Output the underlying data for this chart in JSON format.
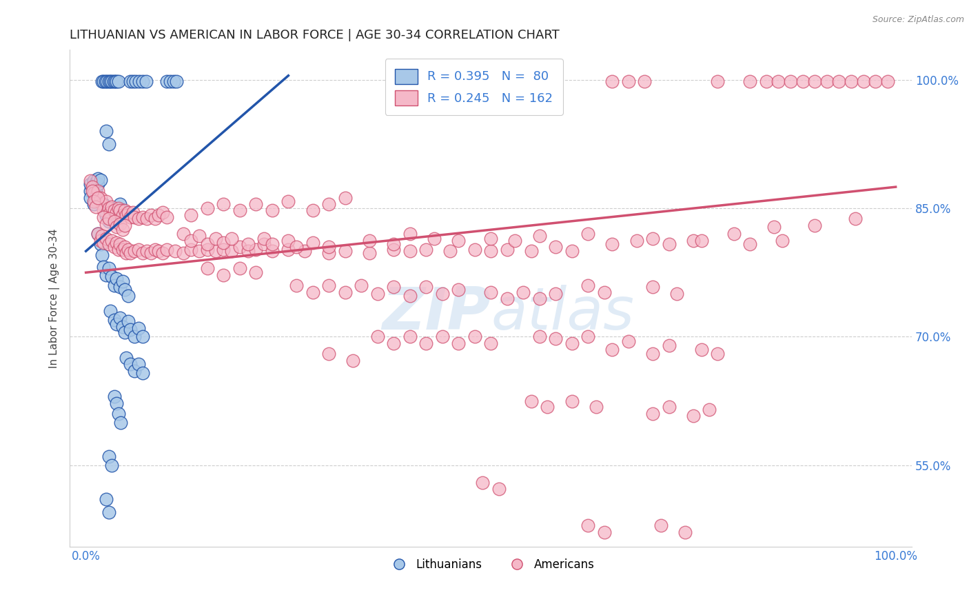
{
  "title": "LITHUANIAN VS AMERICAN IN LABOR FORCE | AGE 30-34 CORRELATION CHART",
  "source_text": "Source: ZipAtlas.com",
  "ylabel": "In Labor Force | Age 30-34",
  "x_lim": [
    -0.02,
    1.02
  ],
  "y_lim": [
    0.455,
    1.035
  ],
  "y_ticks": [
    0.55,
    0.7,
    0.85,
    1.0
  ],
  "x_ticks": [
    0.0,
    1.0
  ],
  "title_fontsize": 13,
  "axis_label_fontsize": 11,
  "tick_label_color": "#3a7bd5",
  "background_color": "#ffffff",
  "grid_color": "#c8c8c8",
  "blue_color_face": "#a8c8e8",
  "blue_color_edge": "#2255aa",
  "pink_color_face": "#f5b8c8",
  "pink_color_edge": "#d05070",
  "blue_line_color": "#2255aa",
  "pink_line_color": "#d05070",
  "blue_scatter": [
    [
      0.005,
      0.87
    ],
    [
      0.005,
      0.878
    ],
    [
      0.005,
      0.862
    ],
    [
      0.01,
      0.875
    ],
    [
      0.01,
      0.882
    ],
    [
      0.01,
      0.868
    ],
    [
      0.01,
      0.855
    ],
    [
      0.012,
      0.872
    ],
    [
      0.012,
      0.88
    ],
    [
      0.012,
      0.865
    ],
    [
      0.015,
      0.878
    ],
    [
      0.015,
      0.885
    ],
    [
      0.018,
      0.883
    ],
    [
      0.02,
      0.998
    ],
    [
      0.022,
      0.998
    ],
    [
      0.024,
      0.998
    ],
    [
      0.026,
      0.998
    ],
    [
      0.028,
      0.998
    ],
    [
      0.03,
      0.998
    ],
    [
      0.032,
      0.998
    ],
    [
      0.034,
      0.998
    ],
    [
      0.036,
      0.998
    ],
    [
      0.038,
      0.998
    ],
    [
      0.04,
      0.998
    ],
    [
      0.055,
      0.998
    ],
    [
      0.058,
      0.998
    ],
    [
      0.062,
      0.998
    ],
    [
      0.066,
      0.998
    ],
    [
      0.07,
      0.998
    ],
    [
      0.074,
      0.998
    ],
    [
      0.1,
      0.998
    ],
    [
      0.104,
      0.998
    ],
    [
      0.108,
      0.998
    ],
    [
      0.112,
      0.998
    ],
    [
      0.025,
      0.94
    ],
    [
      0.028,
      0.925
    ],
    [
      0.015,
      0.82
    ],
    [
      0.018,
      0.808
    ],
    [
      0.022,
      0.855
    ],
    [
      0.025,
      0.842
    ],
    [
      0.028,
      0.835
    ],
    [
      0.032,
      0.85
    ],
    [
      0.035,
      0.838
    ],
    [
      0.038,
      0.845
    ],
    [
      0.042,
      0.855
    ],
    [
      0.045,
      0.848
    ],
    [
      0.02,
      0.795
    ],
    [
      0.022,
      0.782
    ],
    [
      0.025,
      0.772
    ],
    [
      0.028,
      0.78
    ],
    [
      0.032,
      0.77
    ],
    [
      0.035,
      0.76
    ],
    [
      0.038,
      0.768
    ],
    [
      0.042,
      0.758
    ],
    [
      0.045,
      0.765
    ],
    [
      0.048,
      0.755
    ],
    [
      0.052,
      0.748
    ],
    [
      0.03,
      0.73
    ],
    [
      0.035,
      0.72
    ],
    [
      0.038,
      0.715
    ],
    [
      0.042,
      0.722
    ],
    [
      0.045,
      0.712
    ],
    [
      0.048,
      0.705
    ],
    [
      0.052,
      0.718
    ],
    [
      0.055,
      0.708
    ],
    [
      0.06,
      0.7
    ],
    [
      0.065,
      0.71
    ],
    [
      0.07,
      0.7
    ],
    [
      0.05,
      0.675
    ],
    [
      0.055,
      0.668
    ],
    [
      0.06,
      0.66
    ],
    [
      0.065,
      0.668
    ],
    [
      0.07,
      0.658
    ],
    [
      0.035,
      0.63
    ],
    [
      0.038,
      0.622
    ],
    [
      0.04,
      0.61
    ],
    [
      0.043,
      0.6
    ],
    [
      0.028,
      0.56
    ],
    [
      0.032,
      0.55
    ],
    [
      0.025,
      0.51
    ],
    [
      0.028,
      0.495
    ]
  ],
  "pink_scatter": [
    [
      0.005,
      0.882
    ],
    [
      0.008,
      0.875
    ],
    [
      0.01,
      0.868
    ],
    [
      0.012,
      0.86
    ],
    [
      0.015,
      0.87
    ],
    [
      0.018,
      0.862
    ],
    [
      0.02,
      0.855
    ],
    [
      0.022,
      0.848
    ],
    [
      0.025,
      0.858
    ],
    [
      0.028,
      0.85
    ],
    [
      0.03,
      0.845
    ],
    [
      0.032,
      0.852
    ],
    [
      0.035,
      0.848
    ],
    [
      0.038,
      0.845
    ],
    [
      0.04,
      0.85
    ],
    [
      0.042,
      0.848
    ],
    [
      0.045,
      0.842
    ],
    [
      0.048,
      0.848
    ],
    [
      0.05,
      0.842
    ],
    [
      0.052,
      0.845
    ],
    [
      0.055,
      0.84
    ],
    [
      0.058,
      0.845
    ],
    [
      0.06,
      0.84
    ],
    [
      0.065,
      0.838
    ],
    [
      0.07,
      0.84
    ],
    [
      0.075,
      0.838
    ],
    [
      0.08,
      0.842
    ],
    [
      0.085,
      0.838
    ],
    [
      0.09,
      0.842
    ],
    [
      0.095,
      0.845
    ],
    [
      0.1,
      0.84
    ],
    [
      0.008,
      0.87
    ],
    [
      0.01,
      0.858
    ],
    [
      0.012,
      0.852
    ],
    [
      0.015,
      0.862
    ],
    [
      0.022,
      0.84
    ],
    [
      0.025,
      0.832
    ],
    [
      0.028,
      0.838
    ],
    [
      0.035,
      0.835
    ],
    [
      0.038,
      0.828
    ],
    [
      0.042,
      0.832
    ],
    [
      0.045,
      0.825
    ],
    [
      0.048,
      0.83
    ],
    [
      0.015,
      0.82
    ],
    [
      0.018,
      0.812
    ],
    [
      0.02,
      0.818
    ],
    [
      0.022,
      0.81
    ],
    [
      0.025,
      0.815
    ],
    [
      0.028,
      0.808
    ],
    [
      0.032,
      0.812
    ],
    [
      0.035,
      0.805
    ],
    [
      0.038,
      0.81
    ],
    [
      0.04,
      0.802
    ],
    [
      0.042,
      0.808
    ],
    [
      0.045,
      0.802
    ],
    [
      0.048,
      0.805
    ],
    [
      0.05,
      0.798
    ],
    [
      0.052,
      0.802
    ],
    [
      0.055,
      0.798
    ],
    [
      0.06,
      0.8
    ],
    [
      0.065,
      0.802
    ],
    [
      0.07,
      0.798
    ],
    [
      0.075,
      0.8
    ],
    [
      0.08,
      0.798
    ],
    [
      0.085,
      0.802
    ],
    [
      0.09,
      0.8
    ],
    [
      0.095,
      0.798
    ],
    [
      0.1,
      0.802
    ],
    [
      0.11,
      0.8
    ],
    [
      0.12,
      0.798
    ],
    [
      0.13,
      0.802
    ],
    [
      0.14,
      0.8
    ],
    [
      0.15,
      0.802
    ],
    [
      0.16,
      0.8
    ],
    [
      0.17,
      0.802
    ],
    [
      0.18,
      0.8
    ],
    [
      0.19,
      0.805
    ],
    [
      0.2,
      0.8
    ],
    [
      0.21,
      0.802
    ],
    [
      0.22,
      0.808
    ],
    [
      0.23,
      0.8
    ],
    [
      0.25,
      0.802
    ],
    [
      0.27,
      0.8
    ],
    [
      0.3,
      0.798
    ],
    [
      0.32,
      0.8
    ],
    [
      0.35,
      0.798
    ],
    [
      0.38,
      0.802
    ],
    [
      0.4,
      0.8
    ],
    [
      0.42,
      0.802
    ],
    [
      0.45,
      0.8
    ],
    [
      0.48,
      0.802
    ],
    [
      0.5,
      0.8
    ],
    [
      0.52,
      0.802
    ],
    [
      0.13,
      0.842
    ],
    [
      0.15,
      0.85
    ],
    [
      0.17,
      0.855
    ],
    [
      0.19,
      0.848
    ],
    [
      0.21,
      0.855
    ],
    [
      0.23,
      0.848
    ],
    [
      0.25,
      0.858
    ],
    [
      0.28,
      0.848
    ],
    [
      0.3,
      0.855
    ],
    [
      0.32,
      0.862
    ],
    [
      0.12,
      0.82
    ],
    [
      0.13,
      0.812
    ],
    [
      0.14,
      0.818
    ],
    [
      0.15,
      0.808
    ],
    [
      0.16,
      0.815
    ],
    [
      0.17,
      0.81
    ],
    [
      0.18,
      0.815
    ],
    [
      0.2,
      0.808
    ],
    [
      0.22,
      0.815
    ],
    [
      0.23,
      0.808
    ],
    [
      0.25,
      0.812
    ],
    [
      0.26,
      0.805
    ],
    [
      0.28,
      0.81
    ],
    [
      0.3,
      0.805
    ],
    [
      0.35,
      0.812
    ],
    [
      0.38,
      0.808
    ],
    [
      0.55,
      0.8
    ],
    [
      0.58,
      0.805
    ],
    [
      0.6,
      0.8
    ],
    [
      0.65,
      0.808
    ],
    [
      0.7,
      0.815
    ],
    [
      0.75,
      0.812
    ],
    [
      0.8,
      0.82
    ],
    [
      0.85,
      0.828
    ],
    [
      0.9,
      0.83
    ],
    [
      0.95,
      0.838
    ],
    [
      0.62,
      0.82
    ],
    [
      0.68,
      0.812
    ],
    [
      0.72,
      0.808
    ],
    [
      0.76,
      0.812
    ],
    [
      0.82,
      0.808
    ],
    [
      0.86,
      0.812
    ],
    [
      0.4,
      0.82
    ],
    [
      0.43,
      0.815
    ],
    [
      0.46,
      0.812
    ],
    [
      0.5,
      0.815
    ],
    [
      0.53,
      0.812
    ],
    [
      0.56,
      0.818
    ],
    [
      0.82,
      0.998
    ],
    [
      0.84,
      0.998
    ],
    [
      0.855,
      0.998
    ],
    [
      0.87,
      0.998
    ],
    [
      0.885,
      0.998
    ],
    [
      0.9,
      0.998
    ],
    [
      0.915,
      0.998
    ],
    [
      0.93,
      0.998
    ],
    [
      0.945,
      0.998
    ],
    [
      0.96,
      0.998
    ],
    [
      0.975,
      0.998
    ],
    [
      0.99,
      0.998
    ],
    [
      0.65,
      0.998
    ],
    [
      0.67,
      0.998
    ],
    [
      0.69,
      0.998
    ],
    [
      0.78,
      0.998
    ],
    [
      0.3,
      0.76
    ],
    [
      0.32,
      0.752
    ],
    [
      0.34,
      0.76
    ],
    [
      0.36,
      0.75
    ],
    [
      0.38,
      0.758
    ],
    [
      0.4,
      0.748
    ],
    [
      0.42,
      0.758
    ],
    [
      0.44,
      0.75
    ],
    [
      0.46,
      0.755
    ],
    [
      0.28,
      0.752
    ],
    [
      0.26,
      0.76
    ],
    [
      0.5,
      0.752
    ],
    [
      0.52,
      0.745
    ],
    [
      0.54,
      0.752
    ],
    [
      0.56,
      0.745
    ],
    [
      0.58,
      0.75
    ],
    [
      0.62,
      0.76
    ],
    [
      0.64,
      0.752
    ],
    [
      0.7,
      0.758
    ],
    [
      0.73,
      0.75
    ],
    [
      0.15,
      0.78
    ],
    [
      0.17,
      0.772
    ],
    [
      0.19,
      0.78
    ],
    [
      0.21,
      0.775
    ],
    [
      0.4,
      0.7
    ],
    [
      0.42,
      0.692
    ],
    [
      0.44,
      0.7
    ],
    [
      0.46,
      0.692
    ],
    [
      0.48,
      0.7
    ],
    [
      0.5,
      0.692
    ],
    [
      0.36,
      0.7
    ],
    [
      0.38,
      0.692
    ],
    [
      0.56,
      0.7
    ],
    [
      0.58,
      0.698
    ],
    [
      0.6,
      0.692
    ],
    [
      0.62,
      0.7
    ],
    [
      0.65,
      0.685
    ],
    [
      0.67,
      0.695
    ],
    [
      0.7,
      0.68
    ],
    [
      0.72,
      0.69
    ],
    [
      0.76,
      0.685
    ],
    [
      0.78,
      0.68
    ],
    [
      0.3,
      0.68
    ],
    [
      0.33,
      0.672
    ],
    [
      0.55,
      0.625
    ],
    [
      0.57,
      0.618
    ],
    [
      0.6,
      0.625
    ],
    [
      0.63,
      0.618
    ],
    [
      0.7,
      0.61
    ],
    [
      0.72,
      0.618
    ],
    [
      0.75,
      0.608
    ],
    [
      0.77,
      0.615
    ],
    [
      0.49,
      0.53
    ],
    [
      0.51,
      0.522
    ],
    [
      0.62,
      0.48
    ],
    [
      0.64,
      0.472
    ],
    [
      0.71,
      0.48
    ],
    [
      0.74,
      0.472
    ]
  ],
  "blue_line": {
    "x0": 0.0,
    "x1": 0.25,
    "y0": 0.8,
    "y1": 1.005
  },
  "pink_line": {
    "x0": 0.0,
    "x1": 1.0,
    "y0": 0.775,
    "y1": 0.875
  }
}
